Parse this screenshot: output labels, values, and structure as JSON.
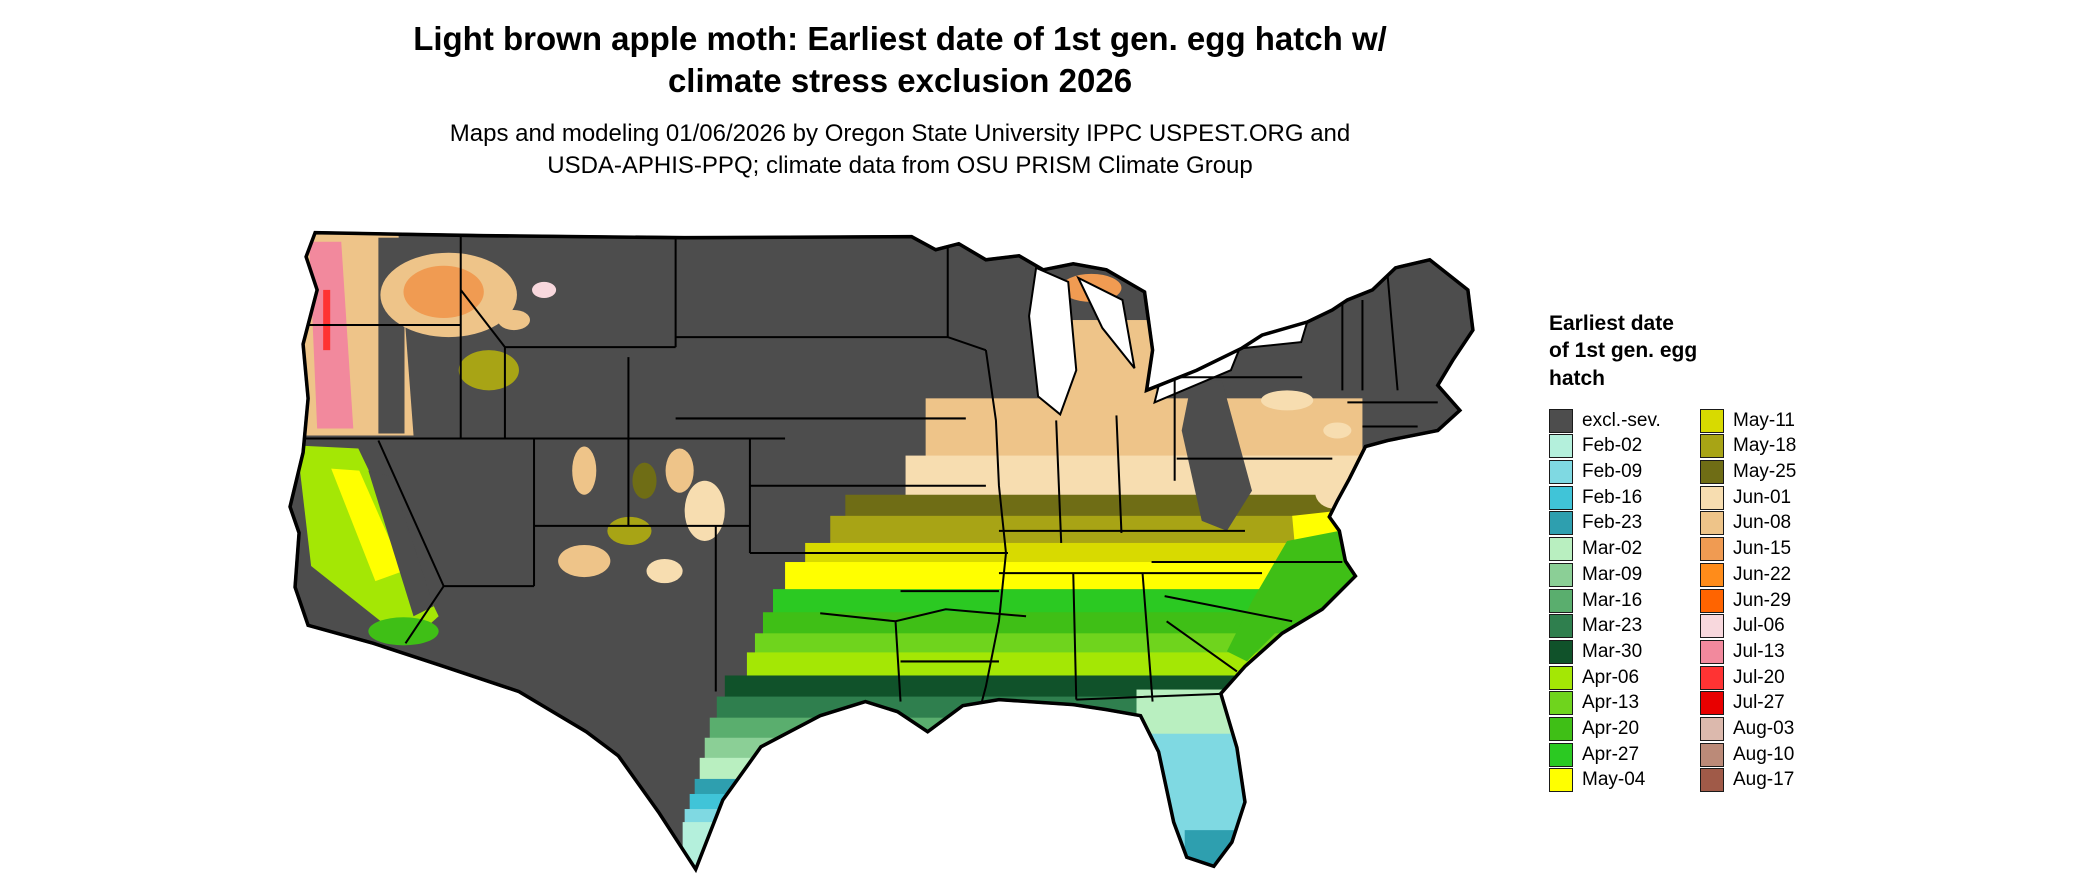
{
  "title": {
    "line1": "Light brown apple moth: Earliest date of 1st gen. egg hatch w/",
    "line2": "climate stress exclusion 2026"
  },
  "subtitle": {
    "line1": "Maps and modeling 01/06/2026 by Oregon State University IPPC USPEST.ORG and",
    "line2": "USDA-APHIS-PPQ; climate data from OSU PRISM Climate Group"
  },
  "legend": {
    "title_lines": [
      "Earliest date",
      "of 1st gen. egg",
      "hatch"
    ],
    "columns": [
      [
        {
          "label": "excl.-sev.",
          "color": "#4d4d4d"
        },
        {
          "label": "Feb-02",
          "color": "#b4f0dc"
        },
        {
          "label": "Feb-09",
          "color": "#7fd9e2"
        },
        {
          "label": "Feb-16",
          "color": "#40c4d8"
        },
        {
          "label": "Feb-23",
          "color": "#2e9faf"
        },
        {
          "label": "Mar-02",
          "color": "#b9efc0"
        },
        {
          "label": "Mar-09",
          "color": "#8bcf96"
        },
        {
          "label": "Mar-16",
          "color": "#5aae6e"
        },
        {
          "label": "Mar-23",
          "color": "#2f7f4e"
        },
        {
          "label": "Mar-30",
          "color": "#10522a"
        },
        {
          "label": "Apr-06",
          "color": "#a4e705"
        },
        {
          "label": "Apr-13",
          "color": "#6fd41d"
        },
        {
          "label": "Apr-20",
          "color": "#3fbf16"
        },
        {
          "label": "Apr-27",
          "color": "#2bc922"
        },
        {
          "label": "May-04",
          "color": "#ffff00"
        }
      ],
      [
        {
          "label": "May-11",
          "color": "#d8da00"
        },
        {
          "label": "May-18",
          "color": "#a8a415"
        },
        {
          "label": "May-25",
          "color": "#6f6d15"
        },
        {
          "label": "Jun-01",
          "color": "#f7ddb0"
        },
        {
          "label": "Jun-08",
          "color": "#eec489"
        },
        {
          "label": "Jun-15",
          "color": "#f09b52"
        },
        {
          "label": "Jun-22",
          "color": "#ff8c1a"
        },
        {
          "label": "Jun-29",
          "color": "#ff6400"
        },
        {
          "label": "Jul-06",
          "color": "#f8d8dd"
        },
        {
          "label": "Jul-13",
          "color": "#f2899d"
        },
        {
          "label": "Jul-20",
          "color": "#ff3333"
        },
        {
          "label": "Jul-27",
          "color": "#e80000"
        },
        {
          "label": "Aug-03",
          "color": "#dcb9ad"
        },
        {
          "label": "Aug-10",
          "color": "#bb8a78"
        },
        {
          "label": "Aug-17",
          "color": "#a05a48"
        }
      ]
    ]
  },
  "map": {
    "background": "#ffffff",
    "outline_color": "#000000",
    "lakes_color": "#ffffff"
  }
}
